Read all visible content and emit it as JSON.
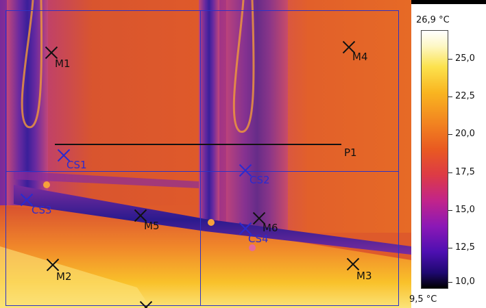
{
  "scale": {
    "max_label": "26,9 °C",
    "min_label": "9,5 °C",
    "ticks": [
      "25,0",
      "22,5",
      "20,0",
      "17,5",
      "15,0",
      "12,5",
      "10,0"
    ]
  },
  "markers": {
    "m1": "M1",
    "m2": "M2",
    "m3": "M3",
    "m4": "M4",
    "m5": "M5",
    "m6": "M6",
    "cs1": "CS1",
    "cs2": "CS2",
    "cs3": "CS3",
    "cs4": "CS4",
    "p1": "P1"
  },
  "colors": {
    "warm_orange": "#e3602b",
    "purple": "#9b2a8c",
    "cold_blue": "#2a1b9a",
    "hot_yellow": "#f7c623",
    "overlay_blue": "#2b32c8"
  }
}
